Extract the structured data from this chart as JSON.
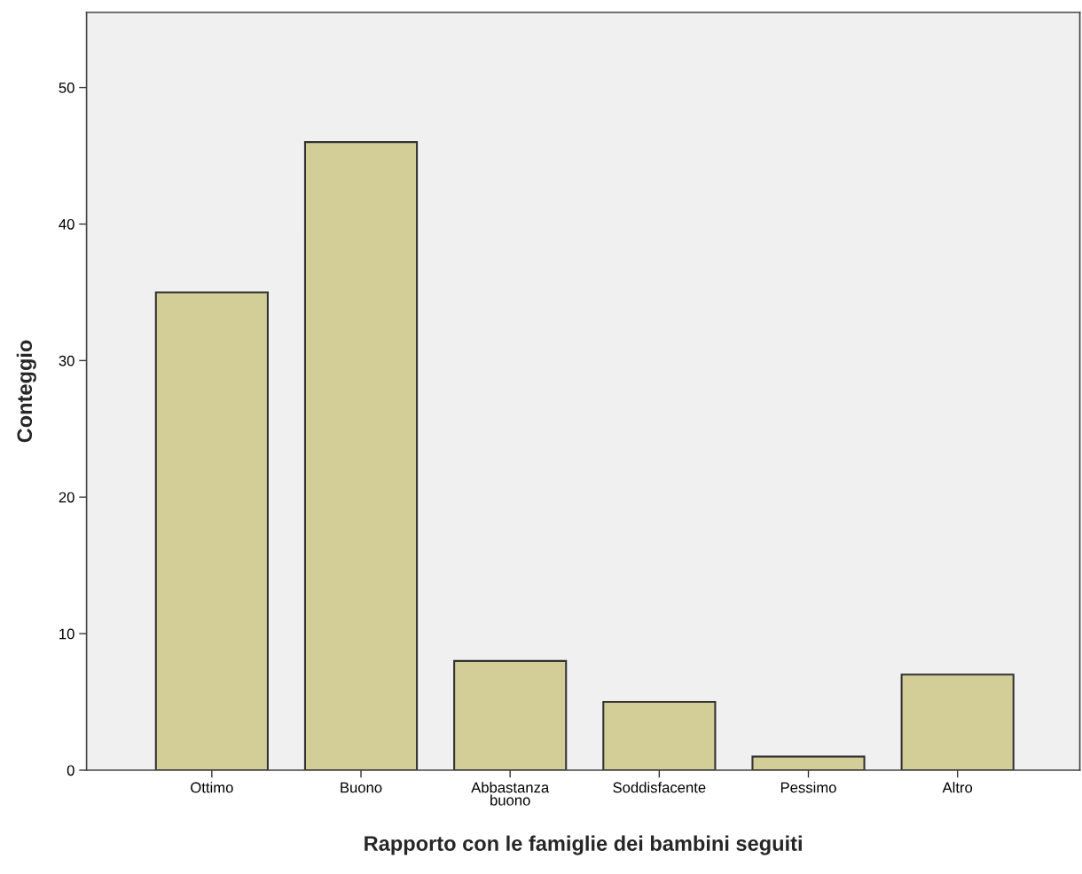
{
  "chart_data": {
    "type": "bar",
    "xlabel": "Rapporto con le famiglie dei bambini seguiti",
    "ylabel": "Conteggio",
    "categories": [
      "Ottimo",
      "Buono",
      "Abbastanza\nbuono",
      "Soddisfacente",
      "Pessimo",
      "Altro"
    ],
    "values": [
      35,
      46,
      8,
      5,
      1,
      7
    ],
    "color": "#d3ce98",
    "ylim": [
      0,
      55.5
    ],
    "yticks": [
      0,
      10,
      20,
      30,
      40,
      50
    ],
    "grid": false,
    "legend": false
  }
}
